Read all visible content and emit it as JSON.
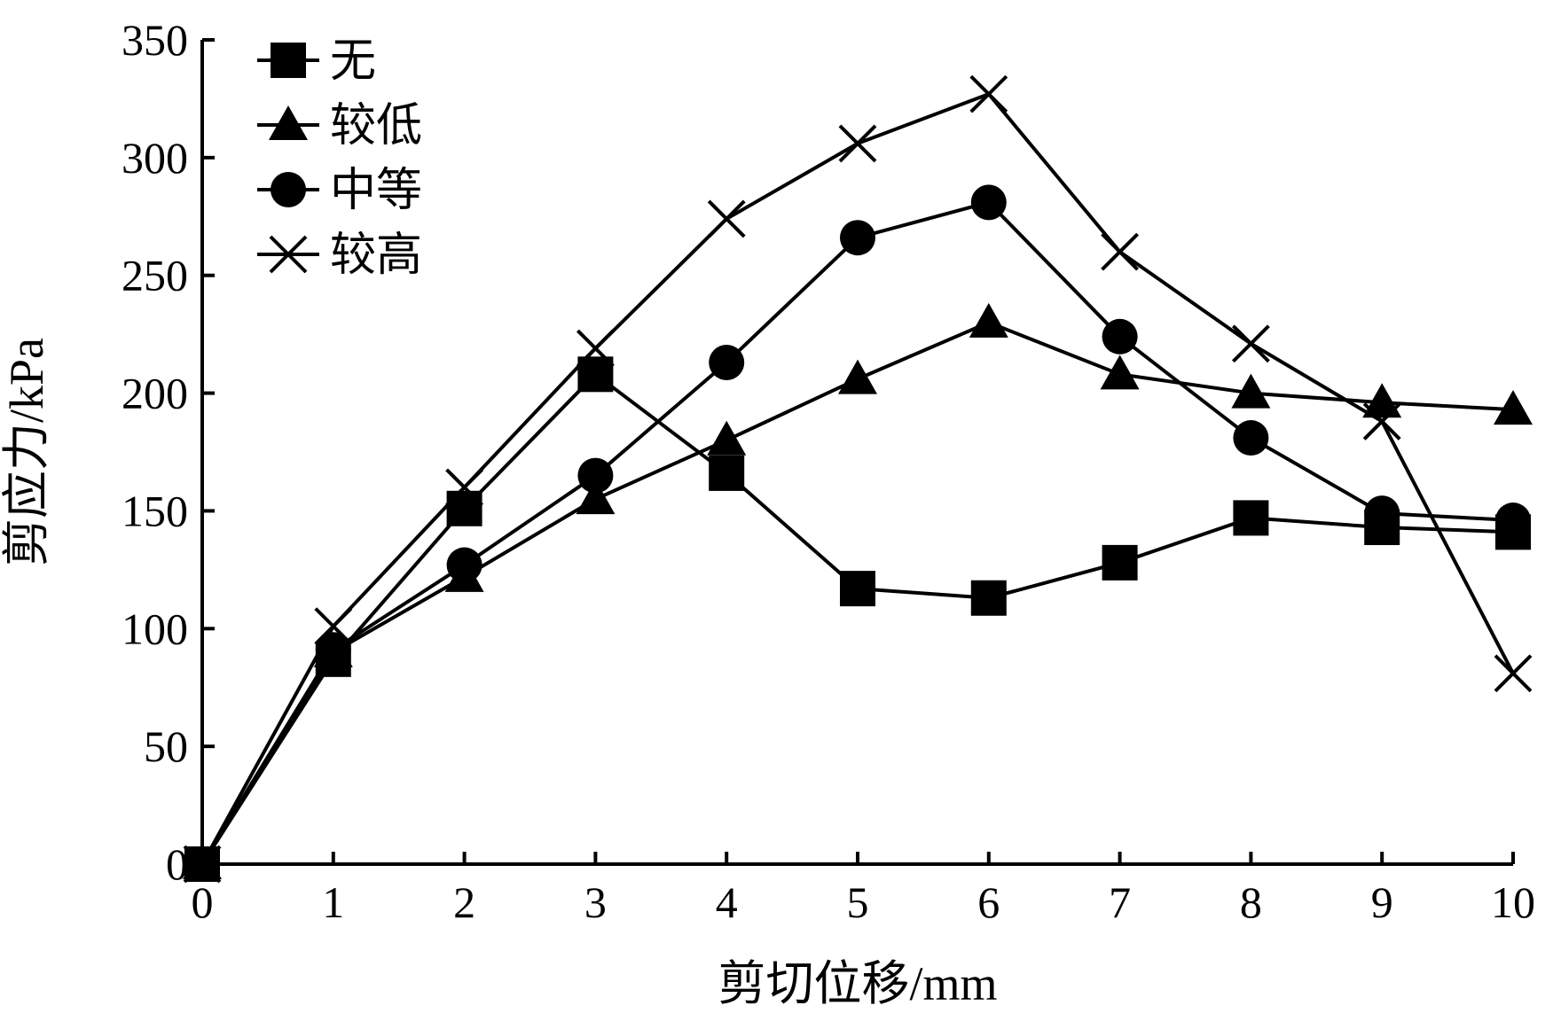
{
  "chart_data": {
    "type": "line",
    "xlabel": "剪切位移/mm",
    "ylabel": "剪应力/kPa",
    "xlim": [
      0,
      10
    ],
    "ylim": [
      0,
      350
    ],
    "x_ticks": [
      0,
      1,
      2,
      3,
      4,
      5,
      6,
      7,
      8,
      9,
      10
    ],
    "y_ticks": [
      0,
      50,
      100,
      150,
      200,
      250,
      300,
      350
    ],
    "x_tick_labels": [
      "0",
      "1",
      "2",
      "3",
      "4",
      "5",
      "6",
      "7",
      "8",
      "9",
      "10"
    ],
    "y_tick_labels": [
      "0",
      "50",
      "100",
      "150",
      "200",
      "250",
      "300",
      "350"
    ],
    "grid": false,
    "legend_position": "top-left",
    "x": [
      0,
      1,
      2,
      3,
      4,
      5,
      6,
      7,
      8,
      9,
      10
    ],
    "series": [
      {
        "name": "无",
        "marker": "square",
        "values": [
          0,
          87,
          151,
          208,
          166,
          117,
          113,
          128,
          147,
          143,
          141
        ]
      },
      {
        "name": "较低",
        "marker": "triangle",
        "values": [
          0,
          90,
          122,
          155,
          180,
          206,
          230,
          208,
          200,
          196,
          193
        ]
      },
      {
        "name": "中等",
        "marker": "circle",
        "values": [
          0,
          91,
          127,
          165,
          213,
          266,
          281,
          224,
          181,
          149,
          146
        ]
      },
      {
        "name": "较高",
        "marker": "x",
        "values": [
          0,
          101,
          160,
          219,
          274,
          306,
          327,
          260,
          221,
          188,
          81
        ]
      }
    ],
    "colors": {
      "line": "#000000",
      "marker": "#000000"
    }
  }
}
